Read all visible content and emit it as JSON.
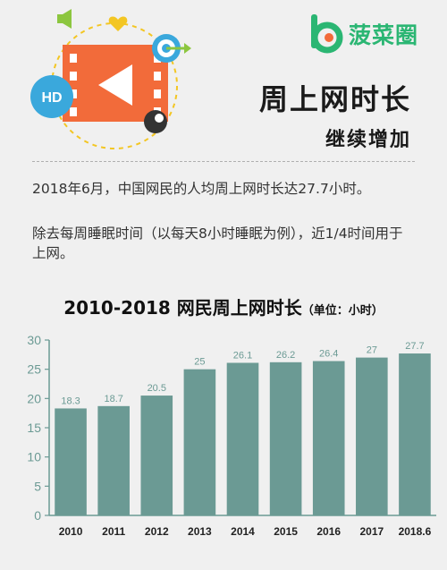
{
  "brand": {
    "name": "菠菜圈",
    "color": "#2bb673"
  },
  "illustration": {
    "badge_text": "HD",
    "icons": [
      "video-clapper-icon",
      "play-icon",
      "speaker-icon",
      "heart-icon",
      "target-icon",
      "hd-badge-icon"
    ]
  },
  "header": {
    "title": "周上网时长",
    "subtitle": "继续增加"
  },
  "body": {
    "paragraph1": "2018年6月，中国网民的人均周上网时长达27.7小时。",
    "paragraph2": "除去每周睡眠时间（以每天8小时睡眠为例），近1/4时间用于上网。"
  },
  "chart_title": {
    "main": "2010-2018 网民周上网时长",
    "sub": "（单位：小时）"
  },
  "chart_data": {
    "type": "bar",
    "categories": [
      "2010",
      "2011",
      "2012",
      "2013",
      "2014",
      "2015",
      "2016",
      "2017",
      "2018.6"
    ],
    "values": [
      18.3,
      18.7,
      20.5,
      25,
      26.1,
      26.2,
      26.4,
      27,
      27.7
    ],
    "data_labels": [
      "18.3",
      "18.7",
      "20.5",
      "25",
      "26.1",
      "26.2",
      "26.4",
      "27",
      "27.7"
    ],
    "y_ticks": [
      0,
      5,
      10,
      15,
      20,
      25,
      30
    ],
    "ylim": [
      0,
      30
    ],
    "grid": false,
    "bar_color": "#6b9a94",
    "axis_color": "#6b9a94"
  },
  "colors": {
    "accent_orange": "#f26b3a",
    "accent_blue": "#3aa8dc",
    "accent_yellow": "#f3c623"
  }
}
